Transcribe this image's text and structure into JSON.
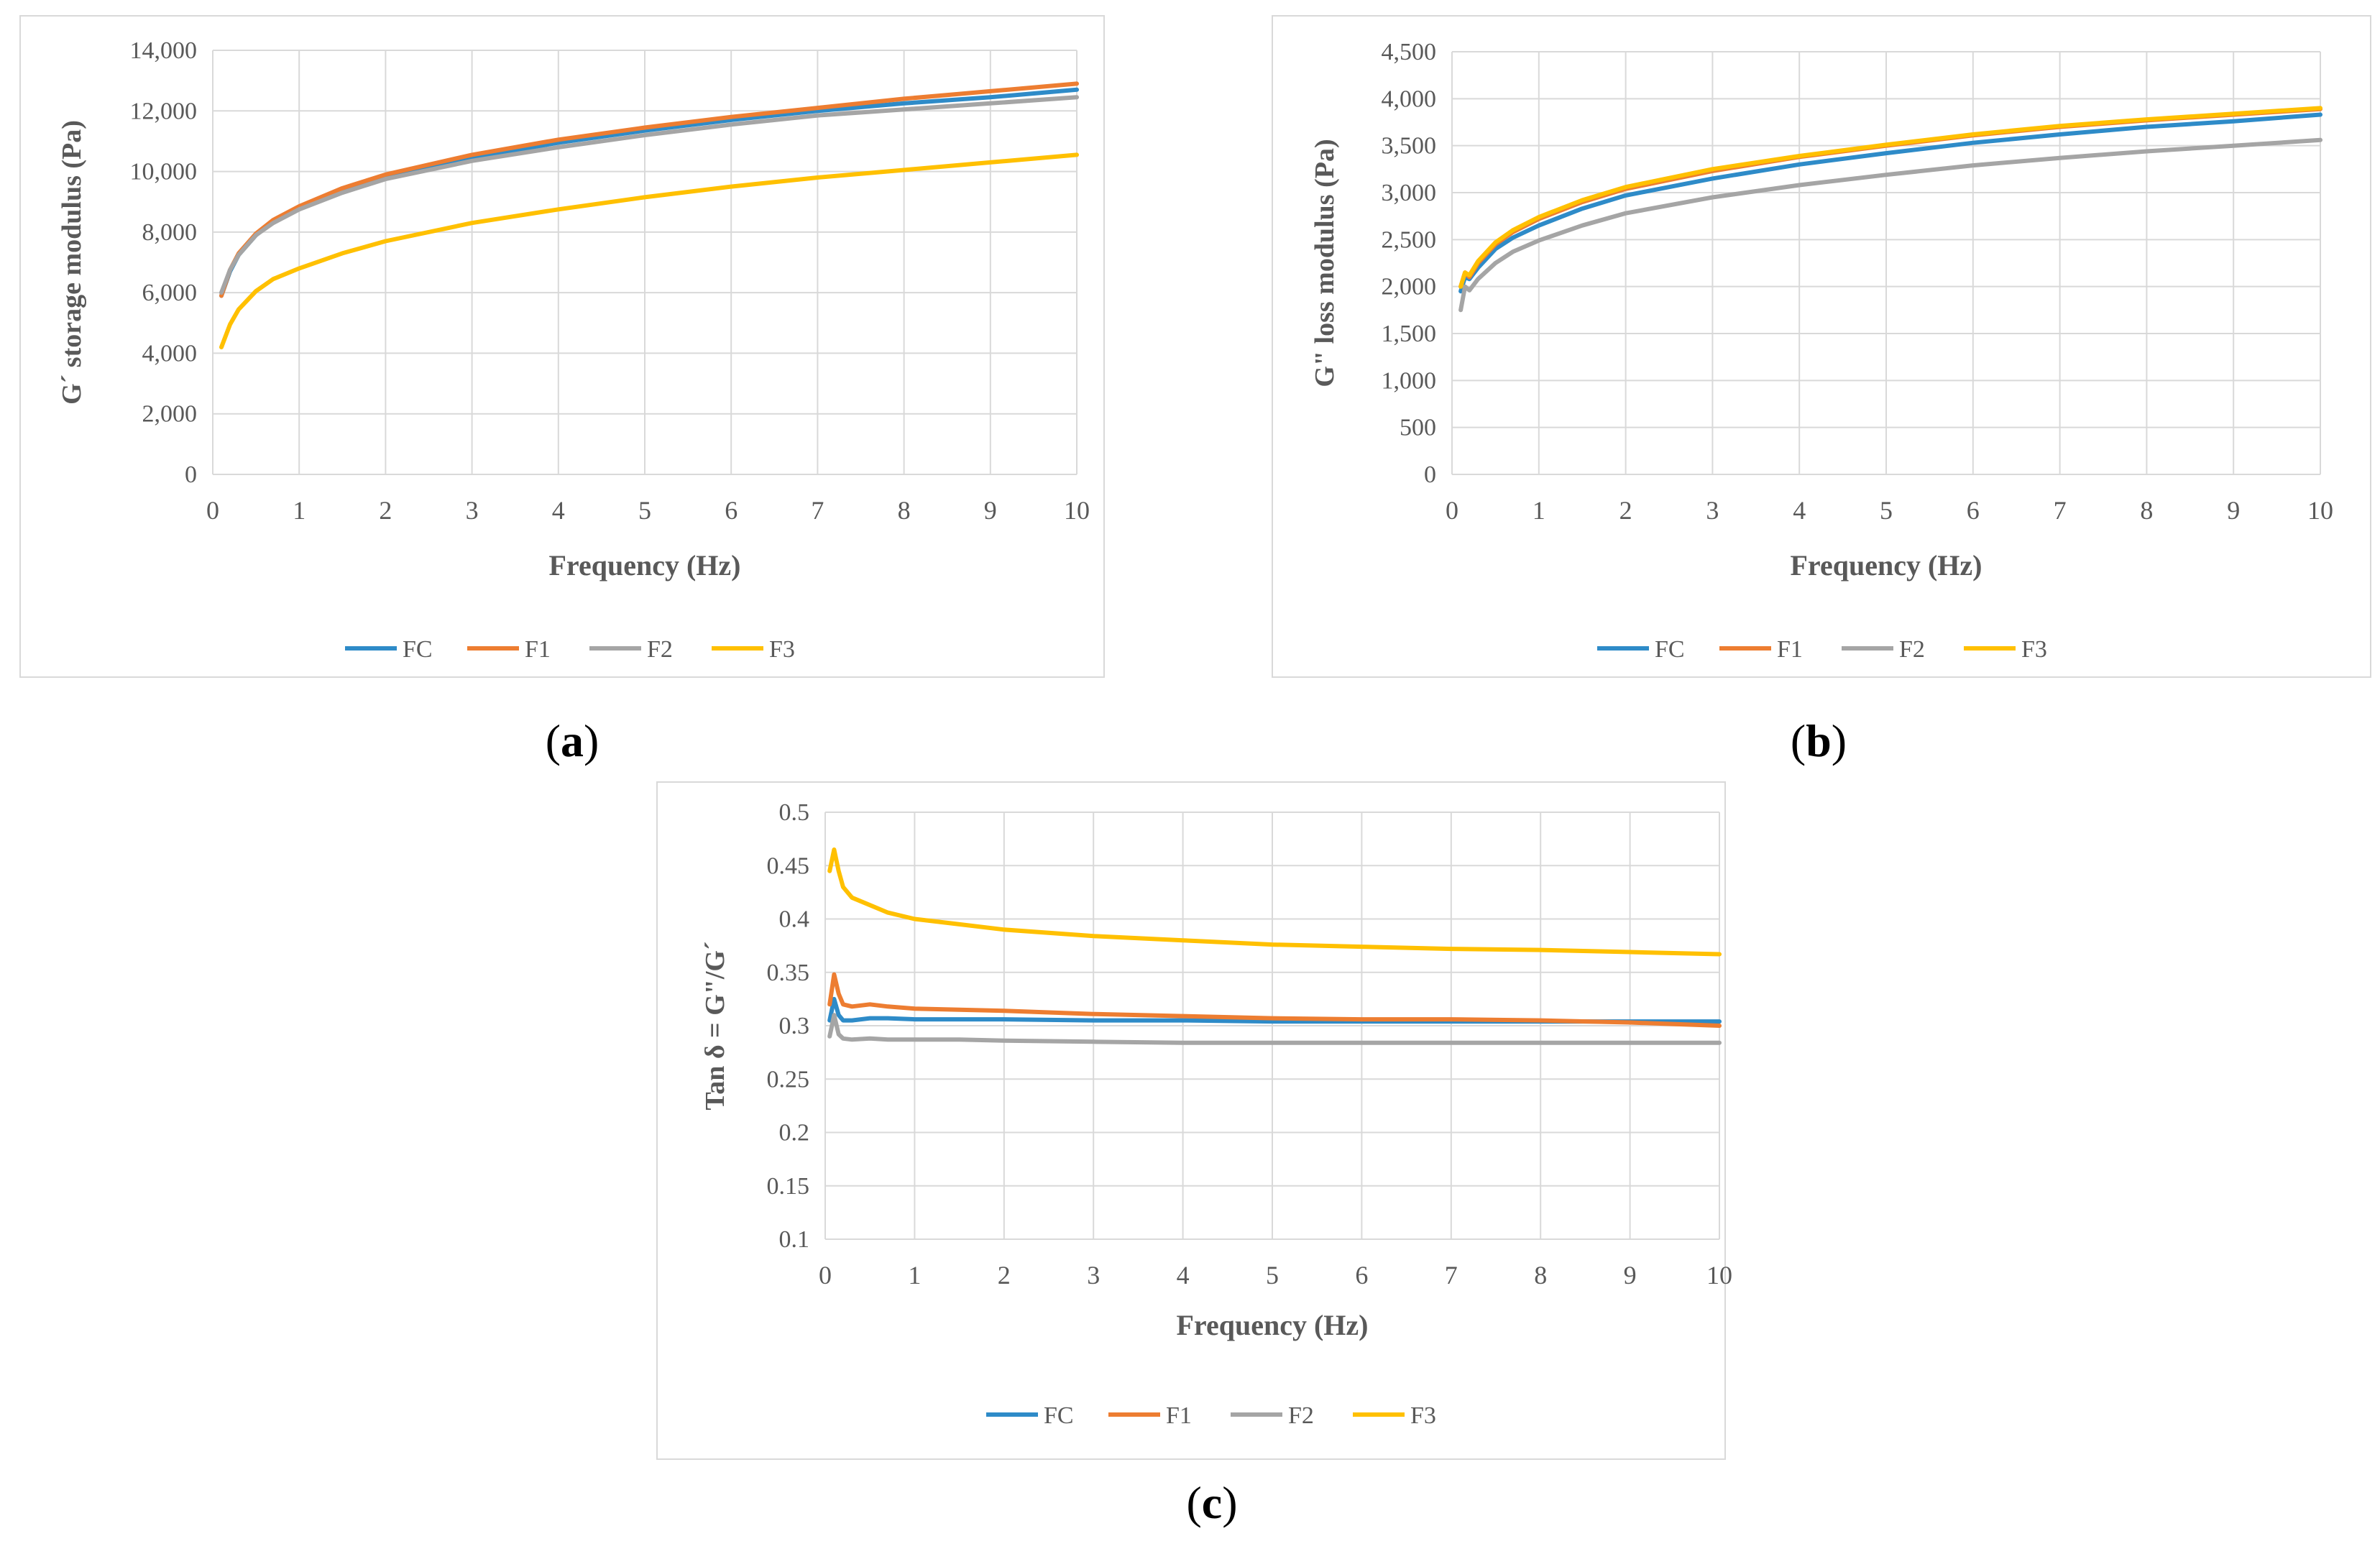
{
  "colors": {
    "FC": "#2E8BC8",
    "F1": "#ED7D31",
    "F2": "#A5A5A5",
    "F3": "#FFC000",
    "grid": "#D9D9D9",
    "frame": "#D9D9D9",
    "text": "#595959"
  },
  "chart_data": [
    {
      "id": "a",
      "type": "line",
      "panel_label": "(a)",
      "panel_letter": "a",
      "title": "",
      "xlabel": "Frequency (Hz)",
      "ylabel": "G´ storage modulus (Pa)",
      "xlim": [
        0,
        10
      ],
      "ylim": [
        0,
        14000
      ],
      "xticks": [
        0,
        1,
        2,
        3,
        4,
        5,
        6,
        7,
        8,
        9,
        10
      ],
      "xtick_labels": [
        "0",
        "1",
        "2",
        "3",
        "4",
        "5",
        "6",
        "7",
        "8",
        "9",
        "10"
      ],
      "yticks": [
        0,
        2000,
        4000,
        6000,
        8000,
        10000,
        12000,
        14000
      ],
      "ytick_labels": [
        "0",
        "2,000",
        "4,000",
        "6,000",
        "8,000",
        "10,000",
        "12,000",
        "14,000"
      ],
      "grid": true,
      "legend_position": "bottom",
      "x": [
        0.1,
        0.2,
        0.3,
        0.5,
        0.7,
        1,
        1.5,
        2,
        3,
        4,
        5,
        6,
        7,
        8,
        9,
        10
      ],
      "series": [
        {
          "name": "FC",
          "values": [
            5900,
            6700,
            7250,
            7900,
            8350,
            8800,
            9400,
            9850,
            10450,
            10950,
            11350,
            11700,
            12000,
            12250,
            12450,
            12700
          ]
        },
        {
          "name": "F1",
          "values": [
            5900,
            6750,
            7300,
            7950,
            8400,
            8850,
            9450,
            9900,
            10550,
            11050,
            11450,
            11800,
            12100,
            12400,
            12650,
            12900
          ]
        },
        {
          "name": "F2",
          "values": [
            6000,
            6750,
            7250,
            7900,
            8300,
            8750,
            9300,
            9750,
            10350,
            10800,
            11200,
            11550,
            11850,
            12050,
            12250,
            12450
          ]
        },
        {
          "name": "F3",
          "values": [
            4200,
            4950,
            5450,
            6050,
            6450,
            6800,
            7300,
            7700,
            8300,
            8750,
            9150,
            9500,
            9800,
            10050,
            10300,
            10550
          ]
        }
      ]
    },
    {
      "id": "b",
      "type": "line",
      "panel_label": "(b)",
      "panel_letter": "b",
      "title": "",
      "xlabel": "Frequency (Hz)",
      "ylabel": "G\" loss modulus (Pa)",
      "xlim": [
        0,
        10
      ],
      "ylim": [
        0,
        4500
      ],
      "xticks": [
        0,
        1,
        2,
        3,
        4,
        5,
        6,
        7,
        8,
        9,
        10
      ],
      "xtick_labels": [
        "0",
        "1",
        "2",
        "3",
        "4",
        "5",
        "6",
        "7",
        "8",
        "9",
        "10"
      ],
      "yticks": [
        0,
        500,
        1000,
        1500,
        2000,
        2500,
        3000,
        3500,
        4000,
        4500
      ],
      "ytick_labels": [
        "0",
        "500",
        "1,000",
        "1,500",
        "2,000",
        "2,500",
        "3,000",
        "3,500",
        "4,000",
        "4,500"
      ],
      "grid": true,
      "legend_position": "bottom",
      "x": [
        0.1,
        0.15,
        0.2,
        0.3,
        0.5,
        0.7,
        1,
        1.5,
        2,
        3,
        4,
        5,
        6,
        7,
        8,
        9,
        10
      ],
      "series": [
        {
          "name": "FC",
          "values": [
            1950,
            2100,
            2080,
            2200,
            2400,
            2520,
            2650,
            2830,
            2970,
            3150,
            3300,
            3420,
            3530,
            3620,
            3700,
            3760,
            3830
          ]
        },
        {
          "name": "F1",
          "values": [
            2000,
            2150,
            2100,
            2250,
            2450,
            2580,
            2720,
            2900,
            3040,
            3230,
            3380,
            3500,
            3610,
            3700,
            3770,
            3830,
            3890
          ]
        },
        {
          "name": "F2",
          "values": [
            1750,
            2000,
            1960,
            2080,
            2250,
            2370,
            2490,
            2650,
            2780,
            2950,
            3080,
            3190,
            3290,
            3370,
            3440,
            3500,
            3560
          ]
        },
        {
          "name": "F3",
          "values": [
            2000,
            2150,
            2120,
            2270,
            2470,
            2600,
            2740,
            2920,
            3060,
            3250,
            3390,
            3510,
            3620,
            3710,
            3780,
            3840,
            3900
          ]
        }
      ]
    },
    {
      "id": "c",
      "type": "line",
      "panel_label": "(c)",
      "panel_letter": "c",
      "title": "",
      "xlabel": "Frequency (Hz)",
      "ylabel": "Tan δ = G\"/G´",
      "xlim": [
        0,
        10
      ],
      "ylim": [
        0.1,
        0.5
      ],
      "xticks": [
        0,
        1,
        2,
        3,
        4,
        5,
        6,
        7,
        8,
        9,
        10
      ],
      "xtick_labels": [
        "0",
        "1",
        "2",
        "3",
        "4",
        "5",
        "6",
        "7",
        "8",
        "9",
        "10"
      ],
      "yticks": [
        0.1,
        0.15,
        0.2,
        0.25,
        0.3,
        0.35,
        0.4,
        0.45,
        0.5
      ],
      "ytick_labels": [
        "0.1",
        "0.15",
        "0.2",
        "0.25",
        "0.3",
        "0.35",
        "0.4",
        "0.45",
        "0.5"
      ],
      "grid": true,
      "legend_position": "bottom",
      "x": [
        0.05,
        0.1,
        0.15,
        0.2,
        0.3,
        0.5,
        0.7,
        1,
        1.5,
        2,
        3,
        4,
        5,
        6,
        7,
        8,
        9,
        10
      ],
      "series": [
        {
          "name": "FC",
          "values": [
            0.305,
            0.325,
            0.31,
            0.305,
            0.305,
            0.307,
            0.307,
            0.306,
            0.306,
            0.306,
            0.305,
            0.305,
            0.304,
            0.304,
            0.304,
            0.304,
            0.304,
            0.304
          ]
        },
        {
          "name": "F1",
          "values": [
            0.32,
            0.348,
            0.33,
            0.32,
            0.318,
            0.32,
            0.318,
            0.316,
            0.315,
            0.314,
            0.311,
            0.309,
            0.307,
            0.306,
            0.306,
            0.305,
            0.303,
            0.3
          ]
        },
        {
          "name": "F2",
          "values": [
            0.29,
            0.31,
            0.292,
            0.288,
            0.287,
            0.288,
            0.287,
            0.287,
            0.287,
            0.286,
            0.285,
            0.284,
            0.284,
            0.284,
            0.284,
            0.284,
            0.284,
            0.284
          ]
        },
        {
          "name": "F3",
          "values": [
            0.445,
            0.465,
            0.445,
            0.43,
            0.42,
            0.413,
            0.406,
            0.4,
            0.395,
            0.39,
            0.384,
            0.38,
            0.376,
            0.374,
            0.372,
            0.371,
            0.369,
            0.367
          ]
        }
      ]
    }
  ]
}
